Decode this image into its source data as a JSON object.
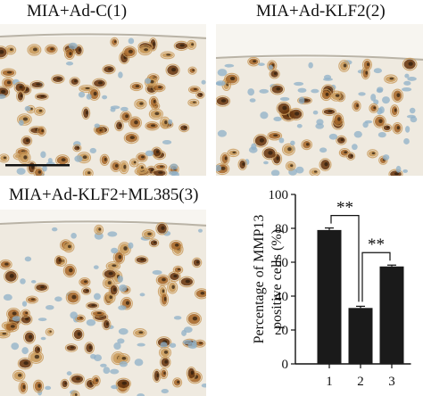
{
  "panels": [
    {
      "label": "MIA+Ad-C(1)"
    },
    {
      "label": "MIA+Ad-KLF2(2)"
    },
    {
      "label": "MIA+Ad-KLF2+ML385(3)"
    }
  ],
  "colors": {
    "tissue": "#efeae0",
    "stain_dark": "#6b3a12",
    "stain_mid": "#a86a2c",
    "stain_light": "#c99a5a",
    "nucleus_blue": "#8fb0c8",
    "bar": "#1a1a1a"
  },
  "chart_data": {
    "type": "bar",
    "categories": [
      "1",
      "2",
      "3"
    ],
    "values": [
      79,
      33,
      57.5
    ],
    "errors": [
      1.2,
      1.0,
      0.8
    ],
    "ylabel_line1": "Percentage of MMP13",
    "ylabel_line2": "positive cells (%)",
    "ylim": [
      0,
      100
    ],
    "yticks": [
      0,
      20,
      40,
      60,
      80,
      100
    ],
    "significance": [
      {
        "from": 0,
        "to": 1,
        "label": "**"
      },
      {
        "from": 1,
        "to": 2,
        "label": "**"
      }
    ]
  }
}
